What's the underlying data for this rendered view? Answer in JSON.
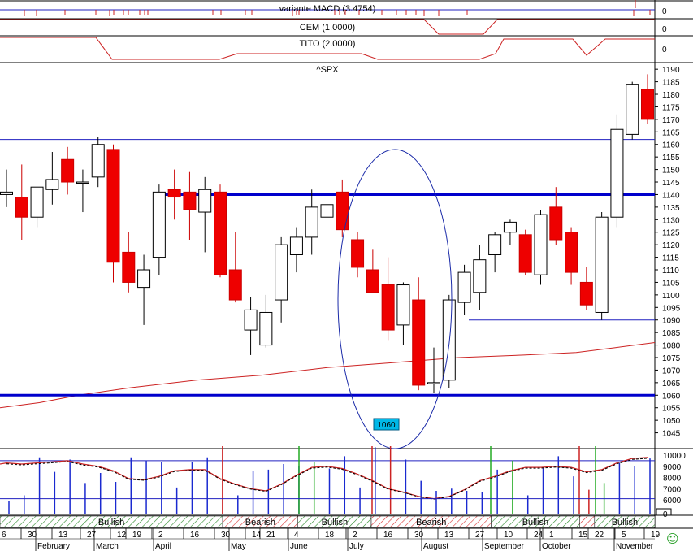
{
  "panels": {
    "macd": {
      "title": "variante MACD (3.4754)",
      "axis_label": "0"
    },
    "cem": {
      "title": "CEM (1.0000)",
      "axis_label": "0"
    },
    "tito": {
      "title": "TITO (2.0000)",
      "axis_label": "0"
    },
    "main": {
      "title": "^SPX"
    },
    "volume": {
      "axis_labels": [
        "10000",
        "9000",
        "8000",
        "7000",
        "6000",
        "0"
      ]
    }
  },
  "box_label": "1060",
  "smiley_icon": "smiley-icon",
  "colors": {
    "up_body": "#ffffff",
    "down_body": "#ee0000",
    "support_line": "#0000cc",
    "thin_line": "#2020c0",
    "moving_average": "#cc2222",
    "ellipse": "#1a2aa8",
    "box_label_bg": "#00b8e8",
    "bullish_fill": "#2a8a2a",
    "bearish_fill": "#d83030"
  },
  "chart_data": {
    "type": "candlestick",
    "title": "^SPX",
    "ylim": [
      1040,
      1192
    ],
    "yticks": [
      1045,
      1050,
      1055,
      1060,
      1065,
      1070,
      1075,
      1080,
      1085,
      1090,
      1095,
      1100,
      1105,
      1110,
      1115,
      1120,
      1125,
      1130,
      1135,
      1140,
      1145,
      1150,
      1155,
      1160,
      1165,
      1170,
      1175,
      1180,
      1185,
      1190
    ],
    "x_day_labels": [
      "6",
      "30",
      "13",
      "27",
      "12",
      "19",
      "2",
      "16",
      "30",
      "14",
      "21",
      "4",
      "18",
      "2",
      "16",
      "30",
      "13",
      "27",
      "10",
      "24",
      "1",
      "15",
      "22",
      "5",
      "19"
    ],
    "x_month_labels": [
      "February",
      "March",
      "April",
      "May",
      "June",
      "July",
      "August",
      "September",
      "October",
      "November"
    ],
    "candles": [
      {
        "o": 1140,
        "h": 1150,
        "l": 1135,
        "c": 1141
      },
      {
        "o": 1139,
        "h": 1152,
        "l": 1122,
        "c": 1131
      },
      {
        "o": 1131,
        "h": 1142,
        "l": 1127,
        "c": 1143
      },
      {
        "o": 1142,
        "h": 1157,
        "l": 1136,
        "c": 1146
      },
      {
        "o": 1154,
        "h": 1159,
        "l": 1140,
        "c": 1145
      },
      {
        "o": 1145,
        "h": 1150,
        "l": 1133,
        "c": 1145
      },
      {
        "o": 1147,
        "h": 1163,
        "l": 1143,
        "c": 1160
      },
      {
        "o": 1158,
        "h": 1160,
        "l": 1105,
        "c": 1113
      },
      {
        "o": 1117,
        "h": 1125,
        "l": 1101,
        "c": 1105
      },
      {
        "o": 1103,
        "h": 1116,
        "l": 1088,
        "c": 1110
      },
      {
        "o": 1115,
        "h": 1144,
        "l": 1108,
        "c": 1141
      },
      {
        "o": 1142,
        "h": 1150,
        "l": 1130,
        "c": 1139
      },
      {
        "o": 1141,
        "h": 1149,
        "l": 1122,
        "c": 1134
      },
      {
        "o": 1133,
        "h": 1147,
        "l": 1117,
        "c": 1142
      },
      {
        "o": 1141,
        "h": 1144,
        "l": 1107,
        "c": 1108
      },
      {
        "o": 1110,
        "h": 1125,
        "l": 1097,
        "c": 1098
      },
      {
        "o": 1086,
        "h": 1099,
        "l": 1076,
        "c": 1094
      },
      {
        "o": 1080,
        "h": 1100,
        "l": 1079,
        "c": 1093
      },
      {
        "o": 1098,
        "h": 1123,
        "l": 1089,
        "c": 1120
      },
      {
        "o": 1116,
        "h": 1127,
        "l": 1109,
        "c": 1123
      },
      {
        "o": 1123,
        "h": 1142,
        "l": 1116,
        "c": 1135
      },
      {
        "o": 1131,
        "h": 1138,
        "l": 1127,
        "c": 1136
      },
      {
        "o": 1141,
        "h": 1146,
        "l": 1123,
        "c": 1126
      },
      {
        "o": 1122,
        "h": 1125,
        "l": 1107,
        "c": 1111
      },
      {
        "o": 1110,
        "h": 1118,
        "l": 1101,
        "c": 1101
      },
      {
        "o": 1104,
        "h": 1115,
        "l": 1082,
        "c": 1086
      },
      {
        "o": 1088,
        "h": 1105,
        "l": 1080,
        "c": 1104
      },
      {
        "o": 1098,
        "h": 1107,
        "l": 1062,
        "c": 1064
      },
      {
        "o": 1065,
        "h": 1079,
        "l": 1061,
        "c": 1065
      },
      {
        "o": 1066,
        "h": 1100,
        "l": 1063,
        "c": 1098
      },
      {
        "o": 1097,
        "h": 1112,
        "l": 1092,
        "c": 1109
      },
      {
        "o": 1101,
        "h": 1120,
        "l": 1094,
        "c": 1114
      },
      {
        "o": 1116,
        "h": 1125,
        "l": 1109,
        "c": 1124
      },
      {
        "o": 1125,
        "h": 1130,
        "l": 1120,
        "c": 1129
      },
      {
        "o": 1124,
        "h": 1126,
        "l": 1108,
        "c": 1109
      },
      {
        "o": 1108,
        "h": 1134,
        "l": 1104,
        "c": 1132
      },
      {
        "o": 1135,
        "h": 1143,
        "l": 1120,
        "c": 1122
      },
      {
        "o": 1125,
        "h": 1127,
        "l": 1104,
        "c": 1109
      },
      {
        "o": 1105,
        "h": 1111,
        "l": 1094,
        "c": 1096
      },
      {
        "o": 1093,
        "h": 1133,
        "l": 1090,
        "c": 1131
      },
      {
        "o": 1131,
        "h": 1172,
        "l": 1127,
        "c": 1166
      },
      {
        "o": 1164,
        "h": 1185,
        "l": 1162,
        "c": 1184
      },
      {
        "o": 1182,
        "h": 1188,
        "l": 1168,
        "c": 1170
      }
    ],
    "horizontal_lines": [
      1162,
      1140,
      1090,
      1060
    ],
    "moving_average": [
      [
        0,
        1055
      ],
      [
        0.25,
        1063
      ],
      [
        0.5,
        1071
      ],
      [
        0.75,
        1076
      ],
      [
        1,
        1080
      ]
    ],
    "volume": [
      5900,
      6400,
      9800,
      8500,
      9600,
      7500,
      8400,
      7600,
      9800,
      9500,
      9400,
      7100,
      9400,
      9800,
      10700,
      6400,
      8600,
      8700,
      9200,
      9000,
      9400,
      8800,
      9900,
      7100,
      10700,
      9400,
      9600,
      7700,
      6800,
      7000,
      6800,
      6700,
      8700,
      9500,
      6400,
      8800,
      9900,
      8100,
      6900,
      7500,
      9300,
      9000,
      9700
    ],
    "volume_line": [
      9300,
      9200,
      9300,
      9400,
      9500,
      9200,
      9000,
      8600,
      7900,
      7800,
      8100,
      8600,
      8700,
      8700,
      7900,
      7400,
      7000,
      6800,
      7400,
      8200,
      8900,
      9000,
      8800,
      8300,
      7700,
      7000,
      6700,
      6300,
      6100,
      6300,
      6900,
      7700,
      8100,
      8600,
      8900,
      8900,
      9000,
      8900,
      8500,
      8700,
      9300,
      9700,
      9800
    ],
    "volume_ylim": [
      6000,
      10000
    ],
    "signals": [
      {
        "label": "Bullish",
        "from": 0,
        "to": 0.34
      },
      {
        "label": "Bearish",
        "from": 0.34,
        "to": 0.455
      },
      {
        "label": "Bullish",
        "from": 0.455,
        "to": 0.567
      },
      {
        "label": "Bearish",
        "from": 0.567,
        "to": 0.75
      },
      {
        "label": "Bullish",
        "from": 0.75,
        "to": 0.885
      },
      {
        "label": "",
        "from": 0.885,
        "to": 0.908
      },
      {
        "label": "Bullish",
        "from": 0.908,
        "to": 1
      }
    ]
  }
}
